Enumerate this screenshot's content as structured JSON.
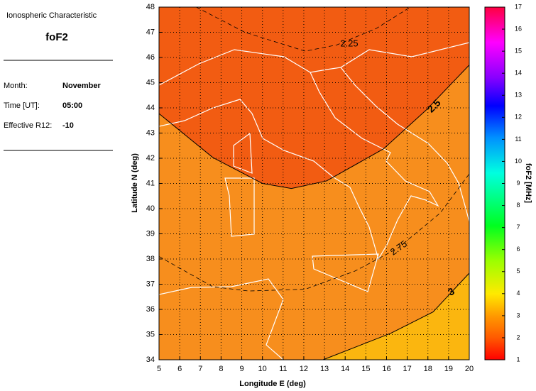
{
  "panel": {
    "heading": "Ionospheric Characteristic",
    "parameter": "foF2",
    "fields": [
      {
        "label": "Month:",
        "value": "November"
      },
      {
        "label": "Time [UT]:",
        "value": "05:00"
      },
      {
        "label": "Effective R12:",
        "value": "-10"
      }
    ]
  },
  "chart_data": {
    "type": "contour",
    "xlabel": "Longitude E (deg)",
    "ylabel": "Latitude N (deg)",
    "xlim": [
      5,
      20
    ],
    "ylim": [
      34,
      48
    ],
    "xticks": [
      5,
      6,
      7,
      8,
      9,
      10,
      11,
      12,
      13,
      14,
      15,
      16,
      17,
      18,
      19,
      20
    ],
    "yticks": [
      34,
      35,
      36,
      37,
      38,
      39,
      40,
      41,
      42,
      43,
      44,
      45,
      46,
      47,
      48
    ],
    "grid": true,
    "background": "#f78e1d",
    "contours": [
      {
        "level": 2.25,
        "style": "dashed",
        "lon": [
          6.8,
          9.15,
          12.07,
          13.6,
          15.5,
          17.15
        ],
        "lat": [
          48,
          47.0,
          46.25,
          46.5,
          47.15,
          48
        ]
      },
      {
        "level": 2.5,
        "style": "solid",
        "fill": "#f25c12",
        "lon": [
          5,
          7.6,
          10.0,
          11.4,
          13.1,
          15.85,
          17.9,
          20
        ],
        "lat": [
          43.77,
          42.03,
          41.0,
          40.8,
          41.1,
          42.37,
          43.9,
          45.7
        ]
      },
      {
        "level": 2.75,
        "style": "dashed",
        "lon": [
          5,
          7.6,
          9.33,
          12.07,
          14.47,
          16.53,
          18.6,
          20
        ],
        "lat": [
          38.1,
          36.9,
          36.73,
          36.8,
          37.52,
          38.42,
          39.83,
          41.38
        ]
      },
      {
        "level": 3,
        "style": "solid",
        "fill": "#fbb60f",
        "lon": [
          12.93,
          16.2,
          18.25,
          20
        ],
        "lat": [
          34,
          35.05,
          35.9,
          37.44
        ]
      }
    ],
    "colorbar": {
      "label": "foF2 [MHz]",
      "lim": [
        1,
        17
      ],
      "ticks": [
        1,
        2,
        3,
        4,
        5,
        6,
        7,
        8,
        9,
        10,
        11,
        12,
        13,
        14,
        15,
        16,
        17
      ]
    }
  }
}
